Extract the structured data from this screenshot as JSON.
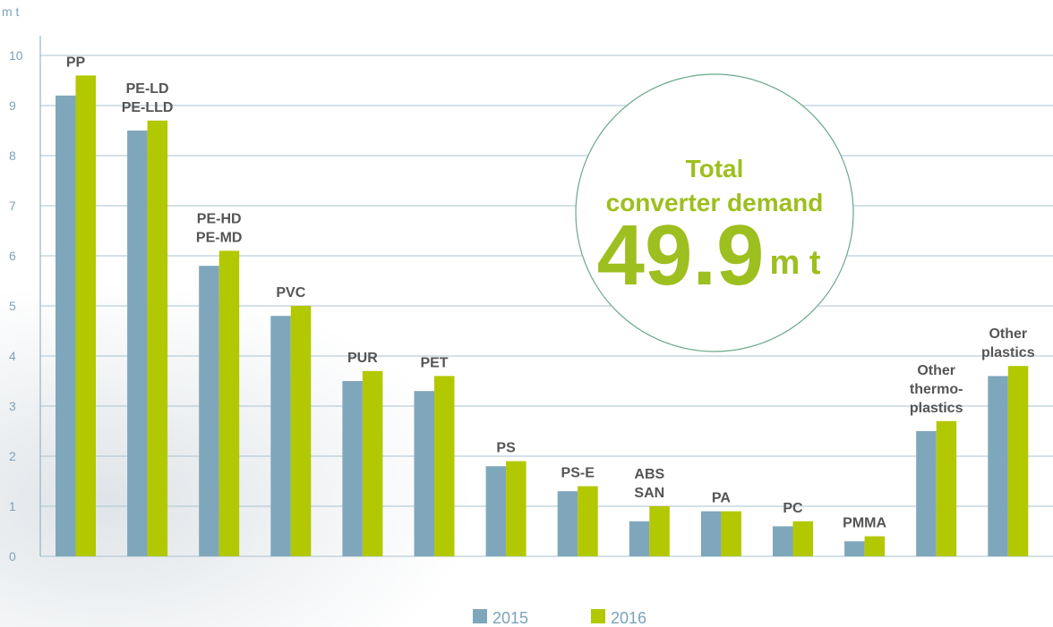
{
  "chart_data": {
    "type": "bar",
    "ylabel": "m t",
    "categories": [
      [
        "PP"
      ],
      [
        "PE-LD",
        "PE-LLD"
      ],
      [
        "PE-HD",
        "PE-MD"
      ],
      [
        "PVC"
      ],
      [
        "PUR"
      ],
      [
        "PET"
      ],
      [
        "PS"
      ],
      [
        "PS-E"
      ],
      [
        "ABS",
        "SAN"
      ],
      [
        "PA"
      ],
      [
        "PC"
      ],
      [
        "PMMA"
      ],
      [
        "Other",
        "thermo-",
        "plastics"
      ],
      [
        "Other",
        "plastics"
      ]
    ],
    "series": [
      {
        "name": "2015",
        "color": "#7fa7bb",
        "values": [
          9.2,
          8.5,
          5.8,
          4.8,
          3.5,
          3.3,
          1.8,
          1.3,
          0.7,
          0.9,
          0.6,
          0.3,
          2.5,
          3.6
        ]
      },
      {
        "name": "2016",
        "color": "#b2c800",
        "values": [
          9.6,
          8.7,
          6.1,
          5.0,
          3.7,
          3.6,
          1.9,
          1.4,
          1.0,
          0.9,
          0.7,
          0.4,
          2.7,
          3.8
        ]
      }
    ],
    "ylim": [
      0,
      10
    ],
    "yticks": [
      0,
      1,
      2,
      3,
      4,
      5,
      6,
      7,
      8,
      9,
      10
    ],
    "grid": true,
    "annotation": {
      "lines": [
        "Total",
        "converter demand"
      ],
      "value": "49.9",
      "unit": "m t"
    }
  }
}
